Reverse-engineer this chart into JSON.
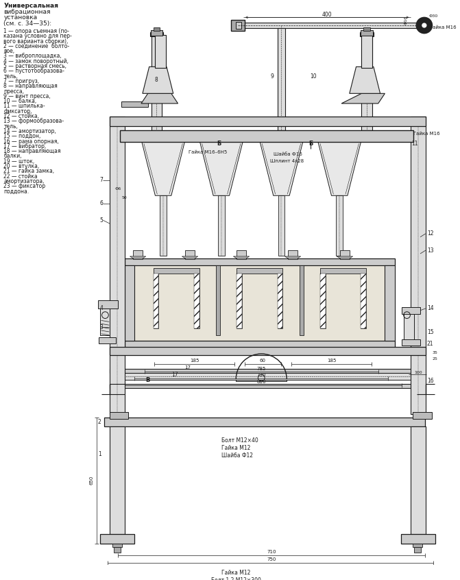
{
  "bg_color": "#ffffff",
  "line_color": "#1a1a1a",
  "text_color": "#1a1a1a",
  "title_lines": [
    "Универсальная",
    "вибрационная",
    "установка",
    "(см. с. 34—35):"
  ],
  "legend_lines": [
    "1 — опора съемная (по-",
    "казана условно для пер-",
    "вого варианта сборки),",
    "2 — соединение  болто-",
    "вое,",
    "3 — виброплощадка,",
    "4 — замок поворотный,",
    "5 — растворная смесь,",
    "6 — пустотообразова-",
    "тель,",
    "7 — пригруз,",
    "8 — направляющая",
    "пресса,",
    "9 — винт пресса,",
    "10 — балка,",
    "11 — шпилька-",
    "фиксатор,",
    "12 — стойка,",
    "13 — формообразова-",
    "тель,",
    "14 — амортизатор,",
    "15 — поддон,",
    "16 — рама опорная,",
    "17 — вибратор,",
    "18 — направляющая",
    "балки,",
    "19 — шток,",
    "20 — втулка,",
    "21 — гайка замка,",
    "22 — стойка",
    "амортизатора,",
    "23 — фиксатор",
    "поддона."
  ]
}
